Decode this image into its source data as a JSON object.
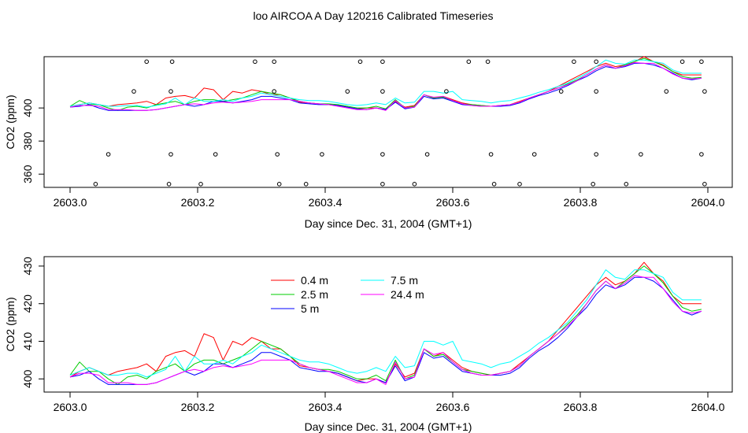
{
  "title": "loo AIRCOA A  Day 120216  Calibrated Timeseries",
  "colors": {
    "0.4 m": "#ff0000",
    "2.5 m": "#00cc00",
    "5 m": "#0000ff",
    "7.5 m": "#00ffff",
    "24.4 m": "#ff00ff"
  },
  "chart_data": [
    {
      "type": "line",
      "xlabel": "Day since Dec. 31, 2004 (GMT+1)",
      "ylabel": "CO2 (ppm)",
      "xlim": [
        2603.0,
        2604.0
      ],
      "ylim": [
        352,
        431
      ],
      "x_ticks": [
        "2603.0",
        "2603.2",
        "2603.4",
        "2603.6",
        "2603.8",
        "2604.0"
      ],
      "y_ticks": [
        "360",
        "380",
        "400"
      ],
      "x_tick_values": [
        2603.0,
        2603.2,
        2603.4,
        2603.6,
        2603.8,
        2604.0
      ],
      "y_tick_values": [
        360,
        380,
        400
      ],
      "grid": false,
      "legend": "none",
      "scatter_points": [
        [
          2603.12,
          428
        ],
        [
          2603.16,
          428
        ],
        [
          2603.29,
          428
        ],
        [
          2603.32,
          428
        ],
        [
          2603.455,
          428
        ],
        [
          2603.49,
          428
        ],
        [
          2603.625,
          428
        ],
        [
          2603.655,
          428
        ],
        [
          2603.79,
          428
        ],
        [
          2603.825,
          428
        ],
        [
          2603.96,
          428
        ],
        [
          2603.99,
          428
        ],
        [
          2603.1,
          410
        ],
        [
          2603.158,
          410
        ],
        [
          2603.32,
          410
        ],
        [
          2603.435,
          410
        ],
        [
          2603.49,
          410
        ],
        [
          2603.59,
          410
        ],
        [
          2603.77,
          410
        ],
        [
          2603.825,
          410
        ],
        [
          2603.935,
          410
        ],
        [
          2603.995,
          410
        ],
        [
          2603.06,
          372
        ],
        [
          2603.158,
          372
        ],
        [
          2603.228,
          372
        ],
        [
          2603.325,
          372
        ],
        [
          2603.395,
          372
        ],
        [
          2603.49,
          372
        ],
        [
          2603.56,
          372
        ],
        [
          2603.66,
          372
        ],
        [
          2603.728,
          372
        ],
        [
          2603.825,
          372
        ],
        [
          2603.895,
          372
        ],
        [
          2603.99,
          372
        ],
        [
          2603.04,
          354
        ],
        [
          2603.155,
          354
        ],
        [
          2603.205,
          354
        ],
        [
          2603.328,
          354
        ],
        [
          2603.37,
          354
        ],
        [
          2603.49,
          354
        ],
        [
          2603.54,
          354
        ],
        [
          2603.665,
          354
        ],
        [
          2603.705,
          354
        ],
        [
          2603.82,
          354
        ],
        [
          2603.872,
          354
        ],
        [
          2603.995,
          354
        ]
      ]
    },
    {
      "type": "line",
      "xlabel": "Day since Dec. 31, 2004 (GMT+1)",
      "ylabel": "CO2 (ppm)",
      "xlim": [
        2603.0,
        2604.0
      ],
      "ylim": [
        396.5,
        432.5
      ],
      "x_ticks": [
        "2603.0",
        "2603.2",
        "2603.4",
        "2603.6",
        "2603.8",
        "2604.0"
      ],
      "y_ticks": [
        "400",
        "410",
        "420",
        "430"
      ],
      "x_tick_values": [
        2603.0,
        2603.2,
        2603.4,
        2603.6,
        2603.8,
        2604.0
      ],
      "y_tick_values": [
        400,
        410,
        420,
        430
      ],
      "grid": false,
      "legend": "top-center",
      "series": [
        {
          "name": "0.4 m",
          "x": [
            2603.0,
            2603.015,
            2603.03,
            2603.045,
            2603.06,
            2603.075,
            2603.09,
            2603.105,
            2603.12,
            2603.135,
            2603.15,
            2603.165,
            2603.18,
            2603.195,
            2603.21,
            2603.225,
            2603.24,
            2603.255,
            2603.27,
            2603.285,
            2603.3,
            2603.315,
            2603.33,
            2603.345,
            2603.36,
            2603.375,
            2603.39,
            2603.405,
            2603.42,
            2603.435,
            2603.45,
            2603.465,
            2603.48,
            2603.495,
            2603.51,
            2603.525,
            2603.54,
            2603.555,
            2603.57,
            2603.585,
            2603.6,
            2603.615,
            2603.63,
            2603.645,
            2603.66,
            2603.675,
            2603.69,
            2603.705,
            2603.72,
            2603.735,
            2603.75,
            2603.765,
            2603.78,
            2603.795,
            2603.81,
            2603.825,
            2603.84,
            2603.855,
            2603.87,
            2603.885,
            2603.9,
            2603.915,
            2603.93,
            2603.945,
            2603.96,
            2603.975,
            2603.99
          ],
          "y": [
            400.5,
            402,
            403,
            402,
            401,
            402,
            402.5,
            403,
            404,
            402,
            406,
            407,
            407.5,
            406,
            412,
            411,
            405,
            410,
            409,
            411,
            410,
            408,
            408,
            406,
            403.5,
            403,
            402.5,
            402,
            401.5,
            400.5,
            399.5,
            400,
            400,
            399,
            404,
            400.5,
            401.5,
            408,
            406,
            407,
            405,
            403,
            402,
            401.5,
            401,
            401.5,
            402,
            404,
            406,
            408,
            410,
            413,
            416,
            419,
            422,
            425,
            427,
            425,
            426,
            428,
            431,
            428,
            426,
            422,
            420,
            420,
            420
          ]
        },
        {
          "name": "2.5 m",
          "x": [
            2603.0,
            2603.015,
            2603.03,
            2603.045,
            2603.06,
            2603.075,
            2603.09,
            2603.105,
            2603.12,
            2603.135,
            2603.15,
            2603.165,
            2603.18,
            2603.195,
            2603.21,
            2603.225,
            2603.24,
            2603.255,
            2603.27,
            2603.285,
            2603.3,
            2603.315,
            2603.33,
            2603.345,
            2603.36,
            2603.375,
            2603.39,
            2603.405,
            2603.42,
            2603.435,
            2603.45,
            2603.465,
            2603.48,
            2603.495,
            2603.51,
            2603.525,
            2603.54,
            2603.555,
            2603.57,
            2603.585,
            2603.6,
            2603.615,
            2603.63,
            2603.645,
            2603.66,
            2603.675,
            2603.69,
            2603.705,
            2603.72,
            2603.735,
            2603.75,
            2603.765,
            2603.78,
            2603.795,
            2603.81,
            2603.825,
            2603.84,
            2603.855,
            2603.87,
            2603.885,
            2603.9,
            2603.915,
            2603.93,
            2603.945,
            2603.96,
            2603.975,
            2603.99
          ],
          "y": [
            401,
            404.5,
            402,
            402,
            400,
            398.5,
            400.5,
            401,
            400,
            402,
            403,
            404,
            402,
            404,
            405,
            405,
            404,
            405,
            406,
            408,
            410,
            409,
            408,
            406,
            404,
            403,
            402.5,
            402.5,
            402,
            401,
            400,
            400,
            401,
            399.5,
            405,
            400,
            401,
            408,
            406,
            406.5,
            404.5,
            402.5,
            402,
            401.5,
            401,
            401.5,
            402,
            403.5,
            406,
            408,
            410,
            412,
            414.5,
            417,
            420,
            423.5,
            426,
            424,
            426,
            428,
            430,
            428,
            425.5,
            422,
            419,
            418,
            418.5
          ]
        },
        {
          "name": "5 m",
          "x": [
            2603.0,
            2603.015,
            2603.03,
            2603.045,
            2603.06,
            2603.075,
            2603.09,
            2603.105,
            2603.12,
            2603.135,
            2603.15,
            2603.165,
            2603.18,
            2603.195,
            2603.21,
            2603.225,
            2603.24,
            2603.255,
            2603.27,
            2603.285,
            2603.3,
            2603.315,
            2603.33,
            2603.345,
            2603.36,
            2603.375,
            2603.39,
            2603.405,
            2603.42,
            2603.435,
            2603.45,
            2603.465,
            2603.48,
            2603.495,
            2603.51,
            2603.525,
            2603.54,
            2603.555,
            2603.57,
            2603.585,
            2603.6,
            2603.615,
            2603.63,
            2603.645,
            2603.66,
            2603.675,
            2603.69,
            2603.705,
            2603.72,
            2603.735,
            2603.75,
            2603.765,
            2603.78,
            2603.795,
            2603.81,
            2603.825,
            2603.84,
            2603.855,
            2603.87,
            2603.885,
            2603.9,
            2603.915,
            2603.93,
            2603.945,
            2603.96,
            2603.975,
            2603.99
          ],
          "y": [
            400.5,
            401,
            402,
            400,
            398.5,
            398.5,
            398.5,
            398.5,
            398.5,
            399,
            400,
            401,
            402,
            401,
            402,
            404,
            404,
            403,
            404,
            405,
            407,
            407,
            406,
            405,
            403,
            402.5,
            402,
            402,
            401.5,
            400.5,
            399.5,
            399,
            400,
            399,
            403.5,
            399.5,
            400.5,
            407,
            405.5,
            406,
            404,
            402,
            401.5,
            401,
            401,
            401,
            401.5,
            403,
            405.5,
            407.5,
            409,
            411,
            413.5,
            416.5,
            419,
            422.5,
            425,
            424,
            425,
            427,
            427,
            426,
            424,
            421,
            418,
            417,
            418
          ]
        },
        {
          "name": "7.5 m",
          "x": [
            2603.0,
            2603.015,
            2603.03,
            2603.045,
            2603.06,
            2603.075,
            2603.09,
            2603.105,
            2603.12,
            2603.135,
            2603.15,
            2603.165,
            2603.18,
            2603.195,
            2603.21,
            2603.225,
            2603.24,
            2603.255,
            2603.27,
            2603.285,
            2603.3,
            2603.315,
            2603.33,
            2603.345,
            2603.36,
            2603.375,
            2603.39,
            2603.405,
            2603.42,
            2603.435,
            2603.45,
            2603.465,
            2603.48,
            2603.495,
            2603.51,
            2603.525,
            2603.54,
            2603.555,
            2603.57,
            2603.585,
            2603.6,
            2603.615,
            2603.63,
            2603.645,
            2603.66,
            2603.675,
            2603.69,
            2603.705,
            2603.72,
            2603.735,
            2603.75,
            2603.765,
            2603.78,
            2603.795,
            2603.81,
            2603.825,
            2603.84,
            2603.855,
            2603.87,
            2603.885,
            2603.9,
            2603.915,
            2603.93,
            2603.945,
            2603.96,
            2603.975,
            2603.99
          ],
          "y": [
            401,
            402,
            403,
            402,
            401,
            401,
            401.5,
            401.5,
            400.5,
            401.5,
            402.5,
            406,
            402,
            406,
            404,
            404,
            405,
            404,
            406,
            407,
            409,
            408,
            407,
            406,
            405,
            404.5,
            404.5,
            404,
            403,
            402,
            401.5,
            402,
            403,
            402,
            406,
            403,
            403.5,
            410,
            410,
            409,
            410,
            405,
            404.5,
            404,
            403,
            404,
            404.5,
            406,
            407.5,
            409.5,
            411,
            413,
            415,
            418,
            421,
            425,
            429,
            427,
            426.5,
            429,
            429,
            428,
            427,
            423,
            421,
            421,
            421
          ]
        },
        {
          "name": "24.4 m",
          "x": [
            2603.0,
            2603.015,
            2603.03,
            2603.045,
            2603.06,
            2603.075,
            2603.09,
            2603.105,
            2603.12,
            2603.135,
            2603.15,
            2603.165,
            2603.18,
            2603.195,
            2603.21,
            2603.225,
            2603.24,
            2603.255,
            2603.27,
            2603.285,
            2603.3,
            2603.315,
            2603.33,
            2603.345,
            2603.36,
            2603.375,
            2603.39,
            2603.405,
            2603.42,
            2603.435,
            2603.45,
            2603.465,
            2603.48,
            2603.495,
            2603.51,
            2603.525,
            2603.54,
            2603.555,
            2603.57,
            2603.585,
            2603.6,
            2603.615,
            2603.63,
            2603.645,
            2603.66,
            2603.675,
            2603.69,
            2603.705,
            2603.72,
            2603.735,
            2603.75,
            2603.765,
            2603.78,
            2603.795,
            2603.81,
            2603.825,
            2603.84,
            2603.855,
            2603.87,
            2603.885,
            2603.9,
            2603.915,
            2603.93,
            2603.945,
            2603.96,
            2603.975,
            2603.99
          ],
          "y": [
            400.5,
            401.5,
            401.5,
            401,
            399,
            399,
            399,
            398.5,
            398.5,
            399,
            400,
            401,
            402,
            402.5,
            402,
            403,
            403.5,
            403,
            403.5,
            404,
            405,
            405,
            405,
            405,
            404,
            403,
            402.5,
            402,
            401,
            400,
            399,
            399,
            400,
            398.5,
            404.5,
            400,
            400.5,
            408,
            406.5,
            407,
            404.5,
            402.5,
            401.5,
            401,
            401,
            401.5,
            402,
            403.5,
            406,
            408,
            410,
            412,
            414,
            416.5,
            420,
            423.5,
            426,
            424,
            425.5,
            427.5,
            427,
            427,
            424,
            420.5,
            418,
            417.5,
            418
          ]
        }
      ]
    }
  ]
}
